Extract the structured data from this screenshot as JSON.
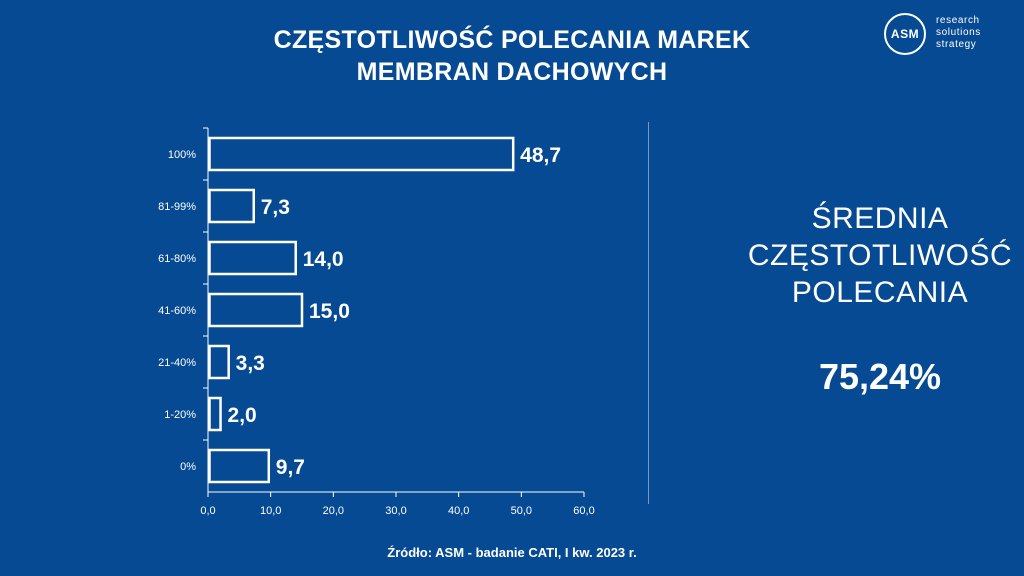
{
  "title": {
    "line1": "CZĘSTOTLIWOŚĆ POLECANIA MAREK",
    "line2": "MEMBRAN DACHOWYCH"
  },
  "logo": {
    "mark": "ASM",
    "line1": "research",
    "line2": "solutions",
    "line3": "strategy"
  },
  "summary": {
    "label_line1": "ŚREDNIA",
    "label_line2": "CZĘSTOTLIWOŚĆ",
    "label_line3": "POLECANIA",
    "value": "75,24%"
  },
  "source": "Źródło: ASM - badanie CATI, I kw. 2023 r.",
  "colors": {
    "background": "#064a93",
    "foreground": "#ffffff"
  },
  "chart_data": {
    "type": "bar",
    "orientation": "horizontal",
    "categories": [
      "100%",
      "81-99%",
      "61-80%",
      "41-60%",
      "21-40%",
      "1-20%",
      "0%"
    ],
    "values": [
      48.7,
      7.3,
      14.0,
      15.0,
      3.3,
      2.0,
      9.7
    ],
    "value_labels": [
      "48,7",
      "7,3",
      "14,0",
      "15,0",
      "3,3",
      "2,0",
      "9,7"
    ],
    "x_ticks": [
      "0,0",
      "10,0",
      "20,0",
      "30,0",
      "40,0",
      "50,0",
      "60,0"
    ],
    "xlim": [
      0,
      60
    ],
    "grid": false,
    "legend": "none"
  }
}
